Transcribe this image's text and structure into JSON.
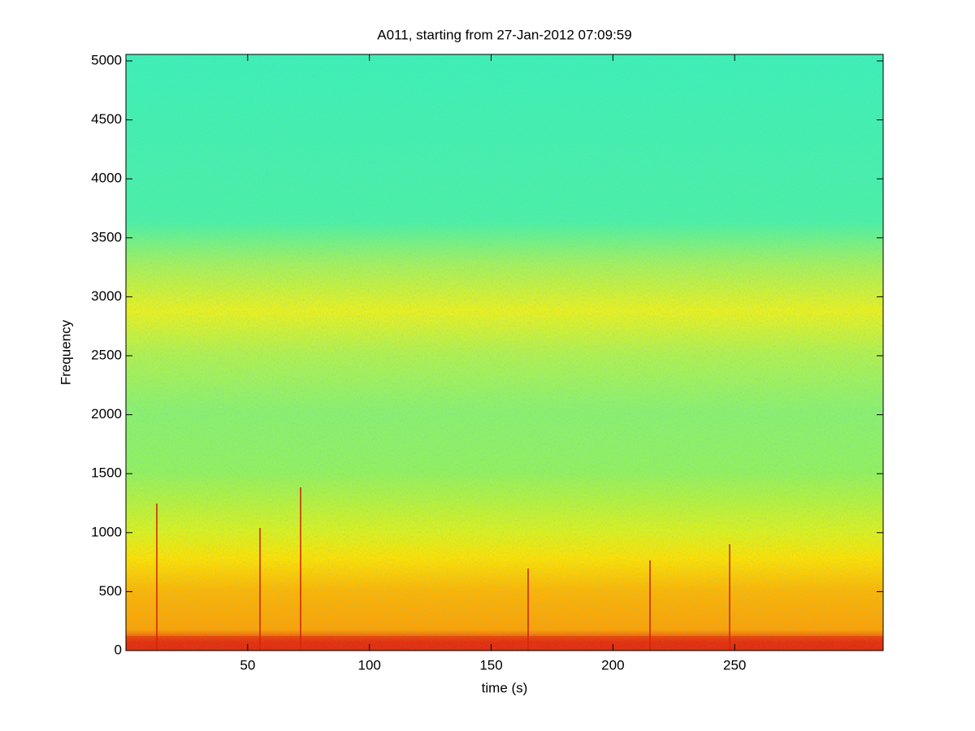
{
  "chart_data": {
    "type": "spectrogram",
    "title": "A011, starting from 27-Jan-2012 07:09:59",
    "x_label": "time (s)",
    "y_label": "Frequency",
    "xlim": [
      0,
      311
    ],
    "xticks": [
      50,
      100,
      150,
      200,
      250
    ],
    "ylim": [
      0,
      5055
    ],
    "yticks": [
      0,
      500,
      1000,
      1500,
      2000,
      2500,
      3000,
      3500,
      4000,
      4500,
      5000
    ],
    "colormap": "jet"
  }
}
